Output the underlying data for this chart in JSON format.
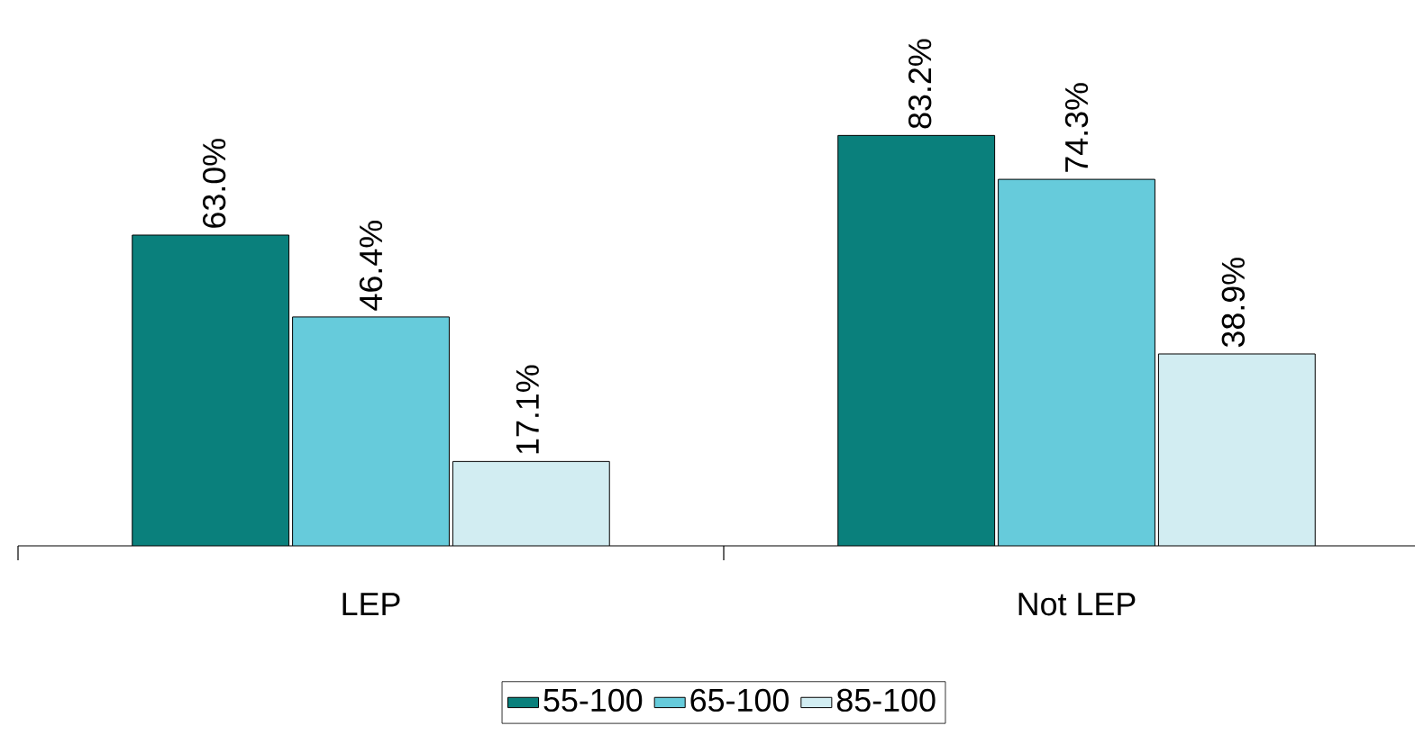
{
  "chart_data": {
    "type": "bar",
    "categories": [
      "LEP",
      "Not LEP"
    ],
    "series": [
      {
        "name": "55-100",
        "color": "#0a807c",
        "values": [
          63.0,
          83.2
        ],
        "value_labels": [
          "63.0%",
          "83.2%"
        ]
      },
      {
        "name": "65-100",
        "color": "#66cbdb",
        "values": [
          46.4,
          74.3
        ],
        "value_labels": [
          "46.4%",
          "74.3%"
        ]
      },
      {
        "name": "85-100",
        "color": "#d2edf2",
        "values": [
          17.1,
          38.9
        ],
        "value_labels": [
          "17.1%",
          "38.9%"
        ]
      }
    ],
    "legend": "bottom"
  }
}
